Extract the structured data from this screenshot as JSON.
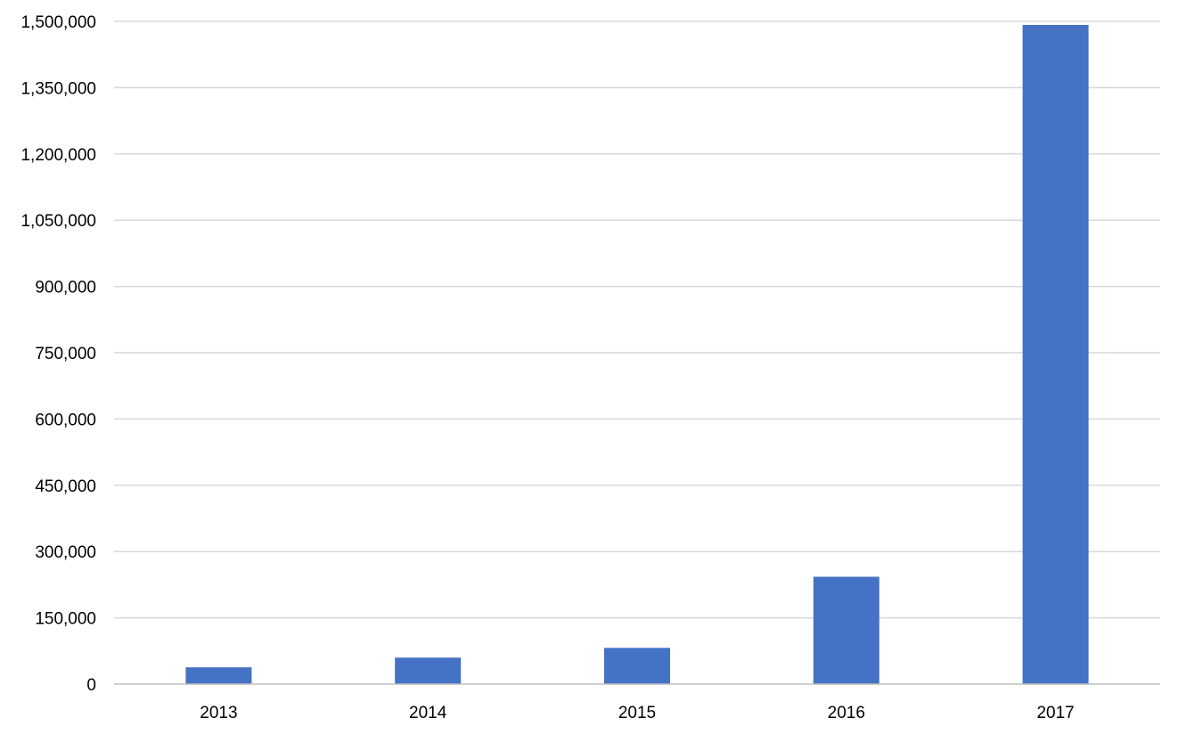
{
  "chart_data": {
    "type": "bar",
    "title": "",
    "xlabel": "",
    "ylabel": "",
    "categories": [
      "2013",
      "2014",
      "2015",
      "2016",
      "2017"
    ],
    "values": [
      38000,
      60000,
      82000,
      243000,
      1492000
    ],
    "ylim": [
      0,
      1500000
    ],
    "yticks": [
      0,
      150000,
      300000,
      450000,
      600000,
      750000,
      900000,
      1050000,
      1200000,
      1350000,
      1500000
    ],
    "ytick_labels": [
      "0",
      "150,000",
      "300,000",
      "450,000",
      "600,000",
      "750,000",
      "900,000",
      "1,050,000",
      "1,200,000",
      "1,350,000",
      "1,500,000"
    ],
    "grid": true,
    "legend": "none",
    "colors": {
      "bar": "#4472C4",
      "grid": "#D9D9D9",
      "axis": "#BFBFBF",
      "text": "#000000"
    }
  }
}
